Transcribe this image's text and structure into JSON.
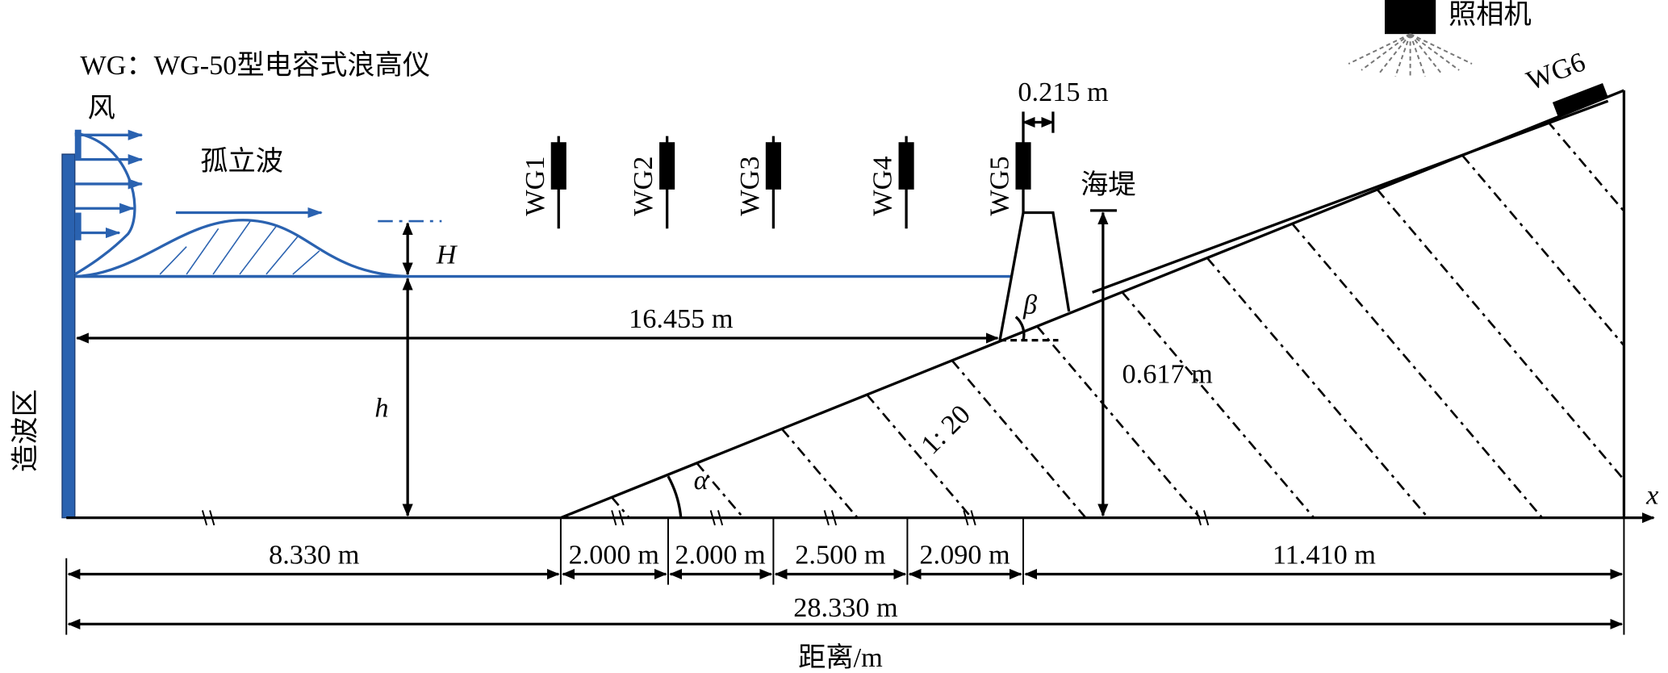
{
  "labels": {
    "legend": "WG：WG-50型电容式浪高仪",
    "wind": "风",
    "wave": "孤立波",
    "wave_height": "H",
    "depth": "h",
    "gauges": [
      "WG1",
      "WG2",
      "WG3",
      "WG4",
      "WG5",
      "WG6"
    ],
    "gauge_spacing": "0.215 m",
    "seawall": "海堤",
    "toe_distance": "16.455 m",
    "beta": "β",
    "alpha": "α",
    "wall_height": "0.617 m",
    "slope": "1: 20",
    "wavemaker": "造波区",
    "x_axis": "x",
    "camera": "照相机",
    "segments": [
      "8.330 m",
      "2.000 m",
      "2.000 m",
      "2.500 m",
      "2.090 m",
      "11.410 m"
    ],
    "total": "28.330 m",
    "axis_title": "距离/m"
  }
}
